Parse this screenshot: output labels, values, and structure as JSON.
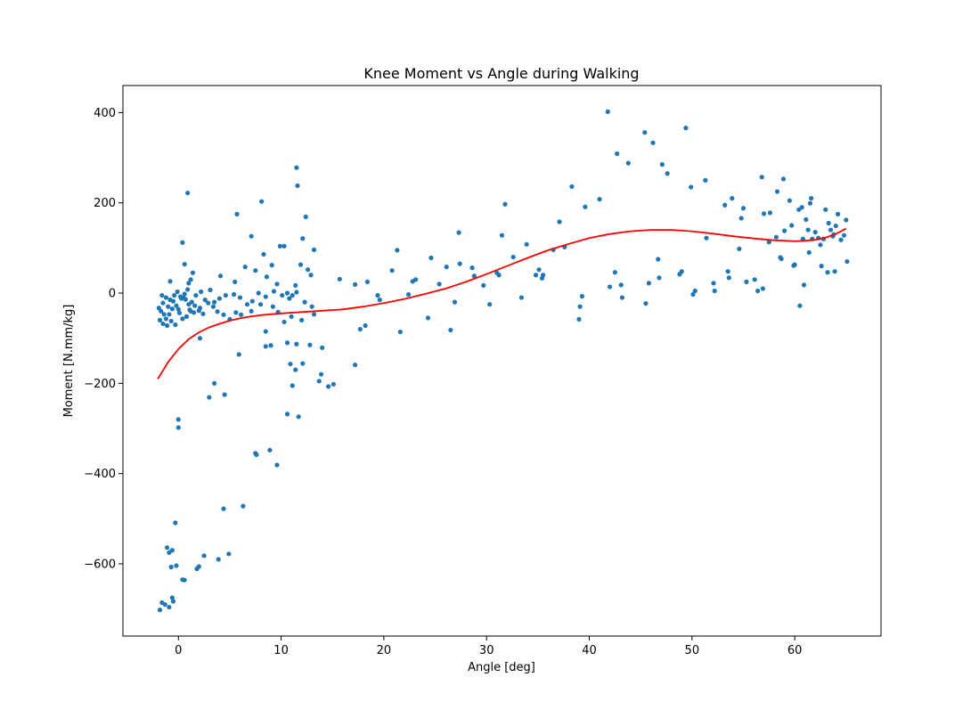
{
  "chart_data": {
    "type": "scatter",
    "title": "Knee Moment vs Angle during Walking",
    "xlabel": "Angle [deg]",
    "ylabel": "Moment [N.mm/kg]",
    "xlim": [
      -5.4,
      68.4
    ],
    "ylim": [
      -760,
      460
    ],
    "xticks": [
      0,
      10,
      20,
      30,
      40,
      50,
      60
    ],
    "yticks": [
      -600,
      -400,
      -200,
      0,
      200,
      400
    ],
    "ytick_labels": [
      "−600",
      "−400",
      "−200",
      "0",
      "200",
      "400"
    ],
    "grid": false,
    "legend": "none",
    "colors": {
      "points": "#1f77b4",
      "fit": "#ff0000"
    },
    "series": [
      {
        "kind": "scatter",
        "points": [
          [
            -1.8,
            -702
          ],
          [
            -1.6,
            -686
          ],
          [
            -1.3,
            -690
          ],
          [
            -0.9,
            -696
          ],
          [
            -0.6,
            -675
          ],
          [
            -0.5,
            -683
          ],
          [
            -0.3,
            -509
          ],
          [
            -0.2,
            -604
          ],
          [
            -0.7,
            -607
          ],
          [
            -0.6,
            -570
          ],
          [
            -0.9,
            -575
          ],
          [
            -1.1,
            -564
          ],
          [
            0.4,
            -635
          ],
          [
            0.6,
            -636
          ],
          [
            1.8,
            -611
          ],
          [
            2.0,
            -606
          ],
          [
            2.5,
            -582
          ],
          [
            3.9,
            -590
          ],
          [
            4.9,
            -578
          ],
          [
            4.4,
            -478
          ],
          [
            6.3,
            -472
          ],
          [
            0.0,
            -280
          ],
          [
            0.0,
            -298
          ],
          [
            3.0,
            -231
          ],
          [
            4.5,
            -225
          ],
          [
            3.5,
            -200
          ],
          [
            7.5,
            -355
          ],
          [
            7.6,
            -358
          ],
          [
            8.9,
            -348
          ],
          [
            9.6,
            -381
          ],
          [
            2.1,
            -100
          ],
          [
            5.9,
            -136
          ],
          [
            8.5,
            -118
          ],
          [
            9.0,
            -116
          ],
          [
            8.5,
            -85
          ],
          [
            10.6,
            -268
          ],
          [
            11.7,
            -274
          ],
          [
            10.9,
            -157
          ],
          [
            11.4,
            -170
          ],
          [
            11.1,
            -205
          ],
          [
            12.1,
            -156
          ],
          [
            13.7,
            -195
          ],
          [
            13.9,
            -180
          ],
          [
            14.6,
            -207
          ],
          [
            15.1,
            -202
          ],
          [
            17.2,
            -159
          ],
          [
            14.0,
            -121
          ],
          [
            12.8,
            -115
          ],
          [
            11.5,
            -113
          ],
          [
            10.6,
            -110
          ],
          [
            17.7,
            -80
          ],
          [
            18.2,
            -72
          ],
          [
            21.6,
            -86
          ],
          [
            24.3,
            -55
          ],
          [
            26.5,
            -82
          ],
          [
            12.0,
            -60
          ],
          [
            13.2,
            -47
          ],
          [
            11.0,
            -52
          ],
          [
            10.3,
            -64
          ],
          [
            9.7,
            -42
          ],
          [
            9.2,
            -30
          ],
          [
            8.0,
            -25
          ],
          [
            7.1,
            -40
          ],
          [
            6.1,
            -48
          ],
          [
            5.6,
            -43
          ],
          [
            5.0,
            -58
          ],
          [
            4.4,
            -48
          ],
          [
            3.8,
            -41
          ],
          [
            3.4,
            -30
          ],
          [
            2.9,
            -22
          ],
          [
            2.4,
            -46
          ],
          [
            2.0,
            -39
          ],
          [
            1.6,
            -28
          ],
          [
            1.2,
            -40
          ],
          [
            0.8,
            -52
          ],
          [
            0.4,
            -57
          ],
          [
            0.1,
            -44
          ],
          [
            -0.2,
            -28
          ],
          [
            -0.6,
            -35
          ],
          [
            -0.9,
            -47
          ],
          [
            -1.2,
            -57
          ],
          [
            -1.5,
            -68
          ],
          [
            -1.7,
            -40
          ],
          [
            -1.9,
            -33
          ],
          [
            -1.5,
            -22
          ],
          [
            -1.2,
            -10
          ],
          [
            -0.8,
            -15
          ],
          [
            -0.4,
            -5
          ],
          [
            -0.1,
            3
          ],
          [
            0.3,
            -12
          ],
          [
            0.6,
            -2
          ],
          [
            0.9,
            8
          ],
          [
            1.3,
            -20
          ],
          [
            1.7,
            -5
          ],
          [
            2.2,
            3
          ],
          [
            2.6,
            -15
          ],
          [
            3.1,
            7
          ],
          [
            3.5,
            -20
          ],
          [
            4.0,
            -12
          ],
          [
            4.6,
            -5
          ],
          [
            5.4,
            -3
          ],
          [
            6.0,
            -10
          ],
          [
            6.7,
            -25
          ],
          [
            7.2,
            -18
          ],
          [
            7.8,
            0
          ],
          [
            8.5,
            -8
          ],
          [
            9.3,
            4
          ],
          [
            10.1,
            -5
          ],
          [
            10.8,
            -12
          ],
          [
            11.5,
            2
          ],
          [
            12.3,
            -20
          ],
          [
            13.0,
            -30
          ],
          [
            -1.6,
            -5
          ],
          [
            -1.0,
            -30
          ],
          [
            -0.5,
            -18
          ],
          [
            0.0,
            -36
          ],
          [
            0.5,
            -10
          ],
          [
            1.0,
            -25
          ],
          [
            1.5,
            -43
          ],
          [
            2.1,
            -33
          ],
          [
            -1.8,
            -60
          ],
          [
            -1.4,
            -47
          ],
          [
            -1.1,
            -72
          ],
          [
            -0.7,
            -62
          ],
          [
            -0.3,
            -70
          ],
          [
            0.2,
            -8
          ],
          [
            0.7,
            -14
          ],
          [
            1.1,
            -37
          ],
          [
            1.4,
            45
          ],
          [
            1.0,
            22
          ],
          [
            0.6,
            64
          ],
          [
            0.4,
            112
          ],
          [
            0.9,
            222
          ],
          [
            -0.8,
            26
          ],
          [
            1.2,
            30
          ],
          [
            4.1,
            38
          ],
          [
            5.5,
            25
          ],
          [
            5.7,
            175
          ],
          [
            6.5,
            58
          ],
          [
            7.1,
            126
          ],
          [
            7.5,
            50
          ],
          [
            8.1,
            203
          ],
          [
            8.3,
            86
          ],
          [
            8.6,
            36
          ],
          [
            9.1,
            62
          ],
          [
            9.6,
            20
          ],
          [
            9.9,
            104
          ],
          [
            10.3,
            104
          ],
          [
            10.6,
            0
          ],
          [
            11.1,
            -5
          ],
          [
            11.4,
            17
          ],
          [
            11.5,
            278
          ],
          [
            11.6,
            238
          ],
          [
            11.9,
            63
          ],
          [
            12.1,
            121
          ],
          [
            12.4,
            169
          ],
          [
            12.6,
            52
          ],
          [
            12.9,
            40
          ],
          [
            13.2,
            96
          ],
          [
            15.7,
            31
          ],
          [
            17.2,
            19
          ],
          [
            18.4,
            25
          ],
          [
            19.4,
            -5
          ],
          [
            19.6,
            -15
          ],
          [
            20.8,
            50
          ],
          [
            21.3,
            95
          ],
          [
            22.4,
            -3
          ],
          [
            22.8,
            26
          ],
          [
            23.1,
            30
          ],
          [
            24.6,
            78
          ],
          [
            25.4,
            20
          ],
          [
            26.1,
            58
          ],
          [
            26.9,
            -20
          ],
          [
            27.3,
            134
          ],
          [
            27.4,
            65
          ],
          [
            28.6,
            56
          ],
          [
            28.8,
            38
          ],
          [
            29.7,
            17
          ],
          [
            30.3,
            -25
          ],
          [
            31.0,
            45
          ],
          [
            31.2,
            40
          ],
          [
            31.5,
            128
          ],
          [
            31.8,
            197
          ],
          [
            32.6,
            80
          ],
          [
            33.4,
            -10
          ],
          [
            33.9,
            108
          ],
          [
            34.8,
            40
          ],
          [
            35.1,
            52
          ],
          [
            35.4,
            33
          ],
          [
            35.5,
            40
          ],
          [
            36.5,
            96
          ],
          [
            37.1,
            158
          ],
          [
            37.6,
            102
          ],
          [
            38.3,
            236
          ],
          [
            39.0,
            -58
          ],
          [
            39.1,
            -30
          ],
          [
            39.3,
            -7
          ],
          [
            39.6,
            191
          ],
          [
            41.0,
            208
          ],
          [
            41.8,
            402
          ],
          [
            42.0,
            14
          ],
          [
            42.5,
            46
          ],
          [
            42.7,
            309
          ],
          [
            43.1,
            18
          ],
          [
            43.2,
            -10
          ],
          [
            43.8,
            288
          ],
          [
            45.4,
            356
          ],
          [
            45.5,
            -23
          ],
          [
            45.8,
            22
          ],
          [
            46.2,
            333
          ],
          [
            46.7,
            75
          ],
          [
            46.8,
            34
          ],
          [
            47.1,
            285
          ],
          [
            47.6,
            265
          ],
          [
            48.8,
            42
          ],
          [
            49.0,
            48
          ],
          [
            49.4,
            366
          ],
          [
            49.9,
            235
          ],
          [
            50.1,
            -3
          ],
          [
            50.3,
            5
          ],
          [
            51.3,
            250
          ],
          [
            51.4,
            122
          ],
          [
            52.1,
            22
          ],
          [
            52.2,
            5
          ],
          [
            53.2,
            195
          ],
          [
            53.5,
            48
          ],
          [
            53.6,
            34
          ],
          [
            53.9,
            210
          ],
          [
            54.6,
            98
          ],
          [
            54.8,
            166
          ],
          [
            55.0,
            188
          ],
          [
            55.3,
            25
          ],
          [
            56.1,
            30
          ],
          [
            56.4,
            5
          ],
          [
            56.8,
            257
          ],
          [
            56.9,
            10
          ],
          [
            57.0,
            176
          ],
          [
            57.5,
            113
          ],
          [
            57.6,
            178
          ],
          [
            58.2,
            124
          ],
          [
            58.3,
            225
          ],
          [
            58.6,
            79
          ],
          [
            58.7,
            76
          ],
          [
            58.9,
            253
          ],
          [
            59.0,
            138
          ],
          [
            59.5,
            205
          ],
          [
            59.7,
            150
          ],
          [
            59.9,
            61
          ],
          [
            60.0,
            63
          ],
          [
            60.4,
            185
          ],
          [
            60.5,
            -28
          ],
          [
            60.7,
            190
          ],
          [
            60.8,
            120
          ],
          [
            60.9,
            18
          ],
          [
            61.1,
            163
          ],
          [
            61.3,
            140
          ],
          [
            61.4,
            90
          ],
          [
            61.5,
            199
          ],
          [
            61.6,
            210
          ],
          [
            61.7,
            120
          ],
          [
            62.0,
            135
          ],
          [
            62.3,
            122
          ],
          [
            62.5,
            107
          ],
          [
            62.6,
            60
          ],
          [
            62.8,
            120
          ],
          [
            63.0,
            185
          ],
          [
            63.2,
            46
          ],
          [
            63.3,
            155
          ],
          [
            63.5,
            140
          ],
          [
            63.7,
            126
          ],
          [
            63.8,
            130
          ],
          [
            63.9,
            48
          ],
          [
            64.0,
            149
          ],
          [
            64.2,
            175
          ],
          [
            64.5,
            118
          ],
          [
            64.8,
            128
          ],
          [
            65.0,
            162
          ],
          [
            65.1,
            70
          ]
        ]
      },
      {
        "kind": "fit",
        "points": [
          [
            -2.0,
            -190
          ],
          [
            -1.0,
            -153
          ],
          [
            0.0,
            -124
          ],
          [
            1.0,
            -102
          ],
          [
            2.0,
            -87
          ],
          [
            3.0,
            -76
          ],
          [
            4.0,
            -68
          ],
          [
            5.0,
            -61
          ],
          [
            6.0,
            -56
          ],
          [
            7.0,
            -52
          ],
          [
            8.0,
            -49
          ],
          [
            9.0,
            -47
          ],
          [
            10.0,
            -45
          ],
          [
            12.0,
            -42
          ],
          [
            14.0,
            -39
          ],
          [
            16.0,
            -36
          ],
          [
            18.0,
            -30
          ],
          [
            20.0,
            -22
          ],
          [
            22.0,
            -13
          ],
          [
            24.0,
            -2
          ],
          [
            26.0,
            10
          ],
          [
            28.0,
            25
          ],
          [
            30.0,
            42
          ],
          [
            32.0,
            60
          ],
          [
            34.0,
            78
          ],
          [
            36.0,
            95
          ],
          [
            38.0,
            109
          ],
          [
            40.0,
            122
          ],
          [
            42.0,
            131
          ],
          [
            44.0,
            137
          ],
          [
            46.0,
            140
          ],
          [
            48.0,
            140
          ],
          [
            50.0,
            137
          ],
          [
            52.0,
            132
          ],
          [
            54.0,
            126
          ],
          [
            56.0,
            121
          ],
          [
            58.0,
            117
          ],
          [
            60.0,
            115
          ],
          [
            61.0,
            116
          ],
          [
            62.0,
            118
          ],
          [
            63.0,
            123
          ],
          [
            64.0,
            131
          ],
          [
            65.0,
            143
          ]
        ]
      }
    ]
  }
}
